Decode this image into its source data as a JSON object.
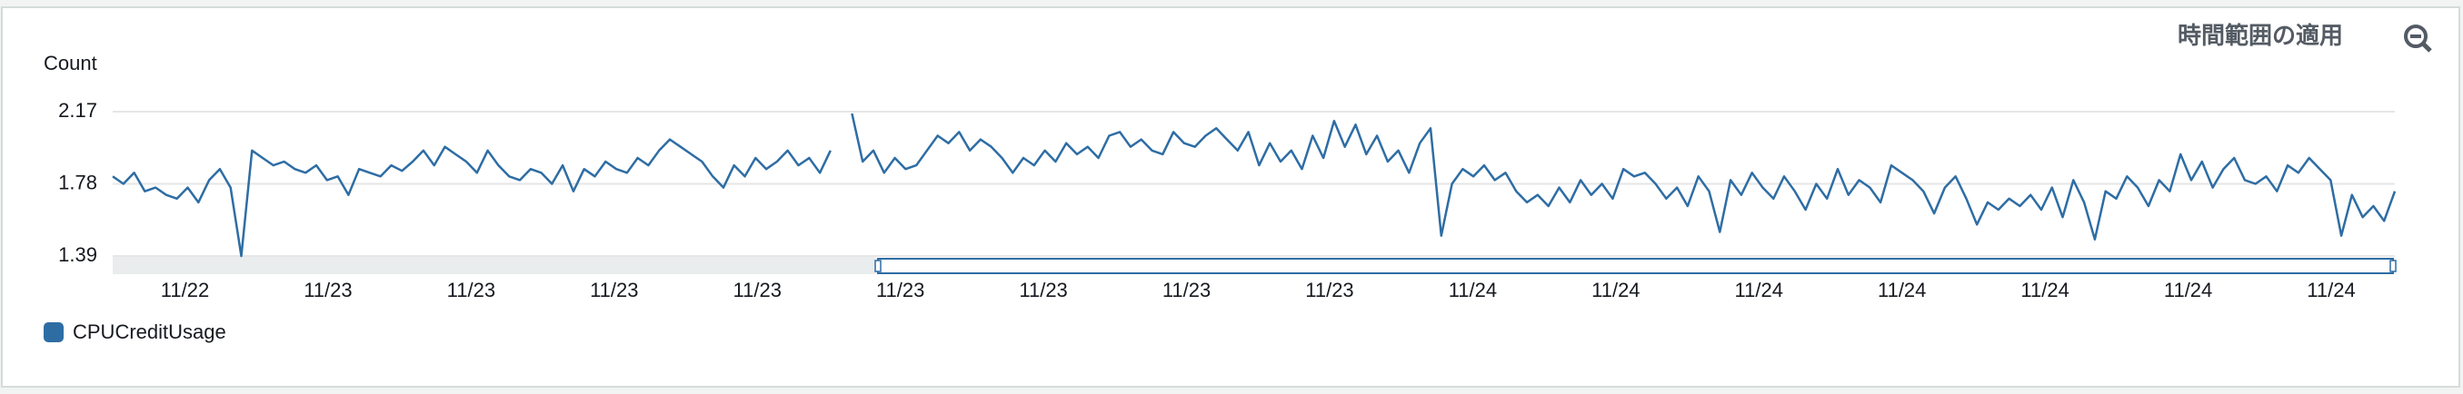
{
  "header": {
    "button": "時間範囲の適用"
  },
  "chart_data": {
    "type": "line",
    "y_label": "Count",
    "ylim": [
      1.39,
      2.17
    ],
    "yticks": [
      1.39,
      1.78,
      2.17
    ],
    "grid": true,
    "xtick_labels": [
      "11/22",
      "11/23",
      "11/23",
      "11/23",
      "11/23",
      "11/23",
      "11/23",
      "11/23",
      "11/23",
      "11/24",
      "11/24",
      "11/24",
      "11/24",
      "11/24",
      "11/24",
      "11/24"
    ],
    "series": [
      {
        "name": "CPUCreditUsage",
        "color": "#2e6da4",
        "values": [
          1.82,
          1.78,
          1.84,
          1.74,
          1.76,
          1.72,
          1.7,
          1.76,
          1.68,
          1.8,
          1.86,
          1.76,
          1.39,
          1.96,
          1.92,
          1.88,
          1.9,
          1.86,
          1.84,
          1.88,
          1.8,
          1.82,
          1.72,
          1.86,
          1.84,
          1.82,
          1.88,
          1.85,
          1.9,
          1.96,
          1.88,
          1.98,
          1.94,
          1.9,
          1.84,
          1.96,
          1.88,
          1.82,
          1.8,
          1.86,
          1.84,
          1.78,
          1.88,
          1.74,
          1.86,
          1.82,
          1.9,
          1.86,
          1.84,
          1.92,
          1.88,
          1.96,
          2.02,
          1.98,
          1.94,
          1.9,
          1.82,
          1.76,
          1.88,
          1.82,
          1.92,
          1.86,
          1.9,
          1.96,
          1.88,
          1.92,
          1.84,
          1.96,
          null,
          2.16,
          1.9,
          1.96,
          1.84,
          1.92,
          1.86,
          1.88,
          1.96,
          2.04,
          2.0,
          2.06,
          1.96,
          2.02,
          1.98,
          1.92,
          1.84,
          1.92,
          1.88,
          1.96,
          1.9,
          2.0,
          1.94,
          1.98,
          1.92,
          2.04,
          2.06,
          1.98,
          2.02,
          1.96,
          1.94,
          2.06,
          2.0,
          1.98,
          2.04,
          2.08,
          2.02,
          1.96,
          2.06,
          1.88,
          2.0,
          1.9,
          1.96,
          1.86,
          2.04,
          1.92,
          2.12,
          1.98,
          2.1,
          1.94,
          2.04,
          1.9,
          1.96,
          1.84,
          2.0,
          2.08,
          1.5,
          1.78,
          1.86,
          1.82,
          1.88,
          1.8,
          1.84,
          1.74,
          1.68,
          1.72,
          1.66,
          1.76,
          1.68,
          1.8,
          1.72,
          1.78,
          1.7,
          1.86,
          1.82,
          1.84,
          1.78,
          1.7,
          1.76,
          1.66,
          1.82,
          1.74,
          1.52,
          1.8,
          1.72,
          1.84,
          1.76,
          1.7,
          1.82,
          1.74,
          1.64,
          1.78,
          1.7,
          1.86,
          1.72,
          1.8,
          1.76,
          1.68,
          1.88,
          1.84,
          1.8,
          1.74,
          1.62,
          1.76,
          1.82,
          1.7,
          1.56,
          1.68,
          1.64,
          1.7,
          1.66,
          1.72,
          1.64,
          1.76,
          1.6,
          1.8,
          1.68,
          1.48,
          1.74,
          1.7,
          1.82,
          1.76,
          1.66,
          1.8,
          1.74,
          1.94,
          1.8,
          1.9,
          1.76,
          1.86,
          1.92,
          1.8,
          1.78,
          1.82,
          1.74,
          1.88,
          1.84,
          1.92,
          1.86,
          1.8,
          1.5,
          1.72,
          1.6,
          1.66,
          1.58,
          1.74
        ]
      }
    ]
  }
}
